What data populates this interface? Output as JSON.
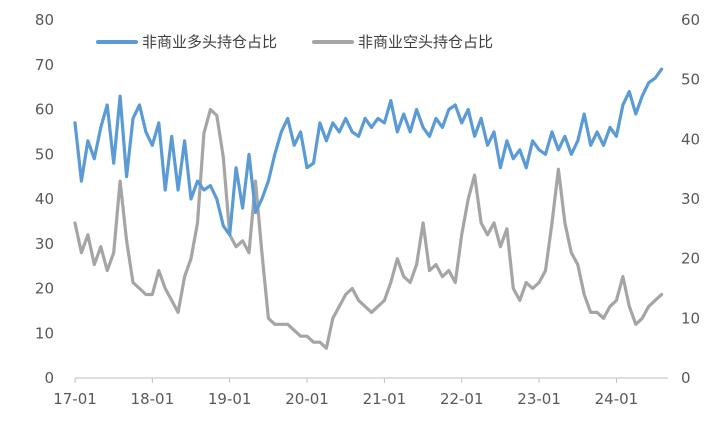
{
  "chart_data": {
    "type": "line",
    "title": "",
    "xlabel": "",
    "ylabel_left": "",
    "ylabel_right": "",
    "x_tick_labels": [
      "17-01",
      "18-01",
      "19-01",
      "20-01",
      "21-01",
      "22-01",
      "23-01",
      "24-01"
    ],
    "y_left": {
      "min": 0,
      "max": 80,
      "step": 10,
      "ticks": [
        "0",
        "10",
        "20",
        "30",
        "40",
        "50",
        "60",
        "70",
        "80"
      ]
    },
    "y_right": {
      "min": 0,
      "max": 60,
      "step": 10,
      "ticks": [
        "0",
        "10",
        "20",
        "30",
        "40",
        "50",
        "60"
      ]
    },
    "grid": false,
    "legend_position": "top-left",
    "series": [
      {
        "name": "非商业多头持仓占比",
        "axis": "left",
        "color": "#5b9bd5",
        "points": [
          [
            "17-01",
            57
          ],
          [
            "17-02",
            44
          ],
          [
            "17-03",
            53
          ],
          [
            "17-04",
            49
          ],
          [
            "17-05",
            56
          ],
          [
            "17-06",
            61
          ],
          [
            "17-07",
            48
          ],
          [
            "17-08",
            63
          ],
          [
            "17-09",
            45
          ],
          [
            "17-10",
            58
          ],
          [
            "17-11",
            61
          ],
          [
            "17-12",
            55
          ],
          [
            "18-01",
            52
          ],
          [
            "18-02",
            57
          ],
          [
            "18-03",
            42
          ],
          [
            "18-04",
            54
          ],
          [
            "18-05",
            42
          ],
          [
            "18-06",
            53
          ],
          [
            "18-07",
            40
          ],
          [
            "18-08",
            44
          ],
          [
            "18-09",
            42
          ],
          [
            "18-10",
            43
          ],
          [
            "18-11",
            40
          ],
          [
            "18-12",
            34
          ],
          [
            "19-01",
            32
          ],
          [
            "19-02",
            47
          ],
          [
            "19-03",
            38
          ],
          [
            "19-04",
            50
          ],
          [
            "19-05",
            37
          ],
          [
            "19-06",
            40
          ],
          [
            "19-07",
            44
          ],
          [
            "19-08",
            50
          ],
          [
            "19-09",
            55
          ],
          [
            "19-10",
            58
          ],
          [
            "19-11",
            52
          ],
          [
            "19-12",
            55
          ],
          [
            "20-01",
            47
          ],
          [
            "20-02",
            48
          ],
          [
            "20-03",
            57
          ],
          [
            "20-04",
            53
          ],
          [
            "20-05",
            57
          ],
          [
            "20-06",
            55
          ],
          [
            "20-07",
            58
          ],
          [
            "20-08",
            55
          ],
          [
            "20-09",
            54
          ],
          [
            "20-10",
            58
          ],
          [
            "20-11",
            56
          ],
          [
            "20-12",
            58
          ],
          [
            "21-01",
            57
          ],
          [
            "21-02",
            62
          ],
          [
            "21-03",
            55
          ],
          [
            "21-04",
            59
          ],
          [
            "21-05",
            55
          ],
          [
            "21-06",
            60
          ],
          [
            "21-07",
            56
          ],
          [
            "21-08",
            54
          ],
          [
            "21-09",
            58
          ],
          [
            "21-10",
            56
          ],
          [
            "21-11",
            60
          ],
          [
            "21-12",
            61
          ],
          [
            "22-01",
            57
          ],
          [
            "22-02",
            60
          ],
          [
            "22-03",
            54
          ],
          [
            "22-04",
            58
          ],
          [
            "22-05",
            52
          ],
          [
            "22-06",
            55
          ],
          [
            "22-07",
            47
          ],
          [
            "22-08",
            53
          ],
          [
            "22-09",
            49
          ],
          [
            "22-10",
            51
          ],
          [
            "22-11",
            47
          ],
          [
            "22-12",
            53
          ],
          [
            "23-01",
            51
          ],
          [
            "23-02",
            50
          ],
          [
            "23-03",
            55
          ],
          [
            "23-04",
            51
          ],
          [
            "23-05",
            54
          ],
          [
            "23-06",
            50
          ],
          [
            "23-07",
            53
          ],
          [
            "23-08",
            59
          ],
          [
            "23-09",
            52
          ],
          [
            "23-10",
            55
          ],
          [
            "23-11",
            52
          ],
          [
            "23-12",
            56
          ],
          [
            "24-01",
            54
          ],
          [
            "24-02",
            61
          ],
          [
            "24-03",
            64
          ],
          [
            "24-04",
            59
          ],
          [
            "24-05",
            63
          ],
          [
            "24-06",
            66
          ],
          [
            "24-07",
            67
          ],
          [
            "24-08",
            69
          ]
        ]
      },
      {
        "name": "非商业空头持仓占比",
        "axis": "right",
        "color": "#a5a5a5",
        "points": [
          [
            "17-01",
            26
          ],
          [
            "17-02",
            21
          ],
          [
            "17-03",
            24
          ],
          [
            "17-04",
            19
          ],
          [
            "17-05",
            22
          ],
          [
            "17-06",
            18
          ],
          [
            "17-07",
            21
          ],
          [
            "17-08",
            33
          ],
          [
            "17-09",
            23
          ],
          [
            "17-10",
            16
          ],
          [
            "17-11",
            15
          ],
          [
            "17-12",
            14
          ],
          [
            "18-01",
            14
          ],
          [
            "18-02",
            18
          ],
          [
            "18-03",
            15
          ],
          [
            "18-04",
            13
          ],
          [
            "18-05",
            11
          ],
          [
            "18-06",
            17
          ],
          [
            "18-07",
            20
          ],
          [
            "18-08",
            26
          ],
          [
            "18-09",
            41
          ],
          [
            "18-10",
            45
          ],
          [
            "18-11",
            44
          ],
          [
            "18-12",
            37
          ],
          [
            "19-01",
            24
          ],
          [
            "19-02",
            22
          ],
          [
            "19-03",
            23
          ],
          [
            "19-04",
            21
          ],
          [
            "19-05",
            33
          ],
          [
            "19-06",
            21
          ],
          [
            "19-07",
            10
          ],
          [
            "19-08",
            9
          ],
          [
            "19-09",
            9
          ],
          [
            "19-10",
            9
          ],
          [
            "19-11",
            8
          ],
          [
            "19-12",
            7
          ],
          [
            "20-01",
            7
          ],
          [
            "20-02",
            6
          ],
          [
            "20-03",
            6
          ],
          [
            "20-04",
            5
          ],
          [
            "20-05",
            10
          ],
          [
            "20-06",
            12
          ],
          [
            "20-07",
            14
          ],
          [
            "20-08",
            15
          ],
          [
            "20-09",
            13
          ],
          [
            "20-10",
            12
          ],
          [
            "20-11",
            11
          ],
          [
            "20-12",
            12
          ],
          [
            "21-01",
            13
          ],
          [
            "21-02",
            16
          ],
          [
            "21-03",
            20
          ],
          [
            "21-04",
            17
          ],
          [
            "21-05",
            16
          ],
          [
            "21-06",
            19
          ],
          [
            "21-07",
            26
          ],
          [
            "21-08",
            18
          ],
          [
            "21-09",
            19
          ],
          [
            "21-10",
            17
          ],
          [
            "21-11",
            18
          ],
          [
            "21-12",
            16
          ],
          [
            "22-01",
            24
          ],
          [
            "22-02",
            30
          ],
          [
            "22-03",
            34
          ],
          [
            "22-04",
            26
          ],
          [
            "22-05",
            24
          ],
          [
            "22-06",
            26
          ],
          [
            "22-07",
            22
          ],
          [
            "22-08",
            25
          ],
          [
            "22-09",
            15
          ],
          [
            "22-10",
            13
          ],
          [
            "22-11",
            16
          ],
          [
            "22-12",
            15
          ],
          [
            "23-01",
            16
          ],
          [
            "23-02",
            18
          ],
          [
            "23-03",
            26
          ],
          [
            "23-04",
            35
          ],
          [
            "23-05",
            26
          ],
          [
            "23-06",
            21
          ],
          [
            "23-07",
            19
          ],
          [
            "23-08",
            14
          ],
          [
            "23-09",
            11
          ],
          [
            "23-10",
            11
          ],
          [
            "23-11",
            10
          ],
          [
            "23-12",
            12
          ],
          [
            "24-01",
            13
          ],
          [
            "24-02",
            17
          ],
          [
            "24-03",
            12
          ],
          [
            "24-04",
            9
          ],
          [
            "24-05",
            10
          ],
          [
            "24-06",
            12
          ],
          [
            "24-07",
            13
          ],
          [
            "24-08",
            14
          ]
        ]
      }
    ]
  }
}
